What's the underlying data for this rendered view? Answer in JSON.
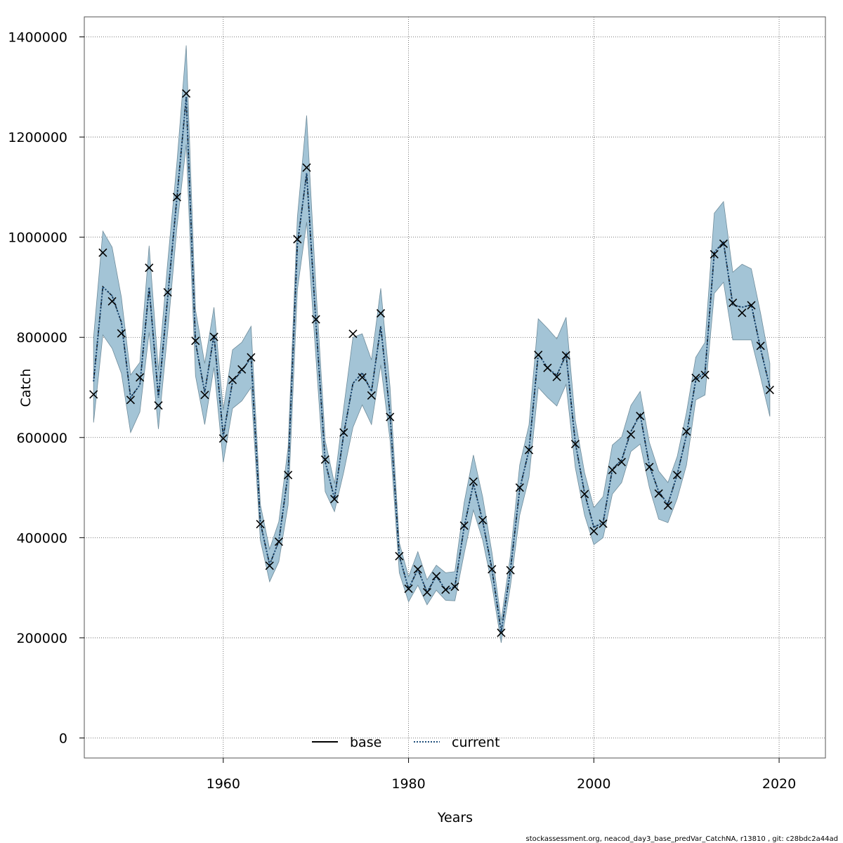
{
  "chart_data": {
    "type": "line",
    "xlabel": "Years",
    "ylabel": "Catch",
    "xlim": [
      1945,
      2025
    ],
    "ylim": [
      -40000,
      1440000
    ],
    "x_ticks": [
      1960,
      1980,
      2000,
      2020
    ],
    "y_ticks": [
      0,
      200000,
      400000,
      600000,
      800000,
      1000000,
      1200000,
      1400000
    ],
    "grid": true,
    "legend_placement": "bottom-center",
    "colors": {
      "band": "#a3c4d6",
      "band_edge": "#6f8c9b",
      "base": "#000000",
      "current": "#1f4e7a",
      "marker": "#000000"
    },
    "x": [
      1946,
      1947,
      1948,
      1949,
      1950,
      1951,
      1952,
      1953,
      1954,
      1955,
      1956,
      1957,
      1958,
      1959,
      1960,
      1961,
      1962,
      1963,
      1964,
      1965,
      1966,
      1967,
      1968,
      1969,
      1970,
      1971,
      1972,
      1973,
      1974,
      1975,
      1976,
      1977,
      1978,
      1979,
      1980,
      1981,
      1982,
      1983,
      1984,
      1985,
      1986,
      1987,
      1988,
      1989,
      1990,
      1991,
      1992,
      1993,
      1994,
      1995,
      1996,
      1997,
      1998,
      1999,
      2000,
      2001,
      2002,
      2003,
      2004,
      2005,
      2006,
      2007,
      2008,
      2009,
      2010,
      2011,
      2012,
      2013,
      2014,
      2015,
      2016,
      2017,
      2018,
      2019
    ],
    "observed": [
      686000,
      969000,
      872000,
      808000,
      675000,
      720000,
      939000,
      664000,
      890000,
      1080000,
      1287000,
      793000,
      685000,
      801000,
      598000,
      715000,
      736000,
      760000,
      427000,
      344000,
      392000,
      525000,
      996000,
      1139000,
      836000,
      556000,
      477000,
      610000,
      807000,
      720000,
      684000,
      848000,
      641000,
      363000,
      298000,
      337000,
      291000,
      323000,
      296000,
      302000,
      424000,
      512000,
      435000,
      337000,
      210000,
      335000,
      500000,
      575000,
      765000,
      739000,
      721000,
      764000,
      587000,
      487000,
      413000,
      428000,
      535000,
      551000,
      606000,
      643000,
      541000,
      488000,
      464000,
      525000,
      612000,
      719000,
      725000,
      966000,
      987000,
      869000,
      849000,
      864000,
      783000,
      695000
    ],
    "series": [
      {
        "name": "base",
        "values": [
          712000,
          901000,
          883000,
          830000,
          680000,
          705000,
          900000,
          680000,
          880000,
          1080000,
          1280000,
          790000,
          690000,
          805000,
          602000,
          712000,
          733000,
          760000,
          430000,
          346000,
          393000,
          528000,
          985000,
          1128000,
          829000,
          552000,
          478000,
          607000,
          708000,
          729000,
          692000,
          822000,
          646000,
          363000,
          298000,
          337000,
          291000,
          323000,
          296000,
          302000,
          421000,
          508000,
          433000,
          337000,
          212000,
          335000,
          497000,
          575000,
          767000,
          739000,
          724000,
          766000,
          590000,
          489000,
          421000,
          430000,
          537000,
          555000,
          612000,
          646000,
          544000,
          492000,
          467000,
          526000,
          605000,
          715000,
          730000,
          970000,
          990000,
          865000,
          860000,
          865000,
          777000,
          700000
        ]
      },
      {
        "name": "current",
        "values": [
          712000,
          901000,
          883000,
          830000,
          680000,
          705000,
          900000,
          680000,
          880000,
          1080000,
          1280000,
          790000,
          690000,
          805000,
          602000,
          712000,
          733000,
          760000,
          430000,
          346000,
          393000,
          528000,
          985000,
          1128000,
          829000,
          552000,
          478000,
          607000,
          708000,
          729000,
          692000,
          822000,
          646000,
          363000,
          298000,
          337000,
          291000,
          323000,
          296000,
          302000,
          421000,
          508000,
          433000,
          337000,
          212000,
          335000,
          497000,
          575000,
          767000,
          739000,
          724000,
          766000,
          590000,
          489000,
          421000,
          430000,
          537000,
          555000,
          612000,
          646000,
          544000,
          492000,
          467000,
          526000,
          605000,
          715000,
          730000,
          970000,
          990000,
          865000,
          860000,
          865000,
          777000,
          700000
        ]
      }
    ],
    "ci_lower": [
      630000,
      805000,
      778000,
      728000,
      610000,
      651000,
      810000,
      617000,
      810000,
      1020000,
      1185000,
      723000,
      626000,
      740000,
      550000,
      658000,
      673000,
      700000,
      395000,
      312000,
      352000,
      465000,
      895000,
      1030000,
      760000,
      492000,
      452000,
      531000,
      620000,
      665000,
      626000,
      745000,
      595000,
      330000,
      272000,
      305000,
      266000,
      295000,
      275000,
      274000,
      368000,
      455000,
      395000,
      305000,
      190000,
      303000,
      445000,
      520000,
      700000,
      680000,
      663000,
      706000,
      540000,
      445000,
      386000,
      400000,
      487000,
      510000,
      572000,
      587000,
      500000,
      437000,
      430000,
      478000,
      545000,
      675000,
      685000,
      888000,
      910000,
      795000,
      795000,
      795000,
      720000,
      642000
    ],
    "ci_upper": [
      800000,
      1012000,
      980000,
      880000,
      725000,
      750000,
      983000,
      734000,
      950000,
      1150000,
      1383000,
      855000,
      748000,
      860000,
      655000,
      775000,
      790000,
      822000,
      466000,
      377000,
      432000,
      580000,
      1040000,
      1243000,
      900000,
      594000,
      508000,
      660000,
      800000,
      807000,
      755000,
      898000,
      701000,
      390000,
      322000,
      372000,
      316000,
      345000,
      330000,
      332000,
      470000,
      565000,
      481000,
      370000,
      235000,
      365000,
      545000,
      625000,
      837000,
      818000,
      797000,
      840000,
      635000,
      530000,
      460000,
      482000,
      585000,
      601000,
      664000,
      692000,
      590000,
      533000,
      510000,
      562000,
      650000,
      760000,
      790000,
      1048000,
      1071000,
      930000,
      946000,
      937000,
      848000,
      748000
    ]
  },
  "legend": {
    "base": "base",
    "current": "current"
  },
  "footer_text": "stockassessment.org, neacod_day3_base_predVar_CatchNA, r13810 , git: c28bdc2a44ad"
}
